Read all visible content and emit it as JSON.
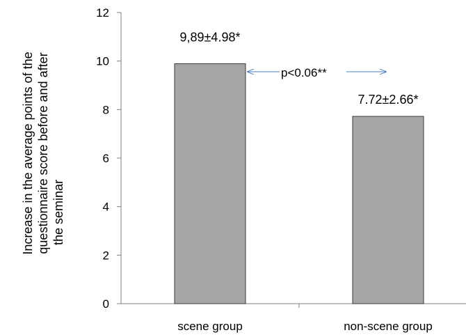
{
  "chart_data": {
    "type": "bar",
    "categories": [
      "scene group",
      "non-scene group"
    ],
    "values": [
      9.89,
      7.72
    ],
    "data_labels": [
      "9,89±4.98*",
      "7.72±2.66*"
    ],
    "ylabel_lines": [
      "Increase in the average points of the",
      "questionnaire score before and after",
      "the seminar"
    ],
    "ylim": [
      0,
      12
    ],
    "yticks": [
      0,
      2,
      4,
      6,
      8,
      10,
      12
    ],
    "annotation": "p<0.06**",
    "colors": {
      "bar": "#a6a6a6",
      "bar_edge": "#3a3a3a",
      "axis": "#7f7f7f",
      "arrow": "#4a7ebb"
    },
    "grid": false,
    "legend": "none"
  }
}
